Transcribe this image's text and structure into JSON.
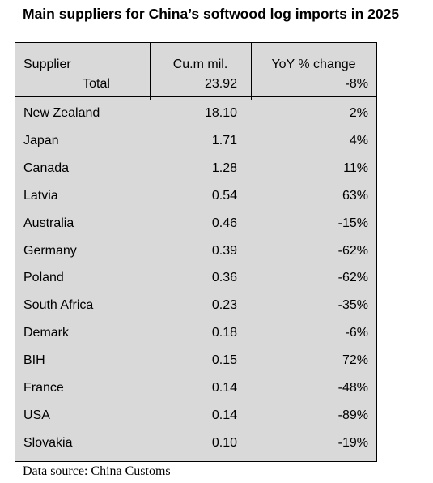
{
  "header": {
    "title": "Main suppliers for China’s softwood log imports in 2025"
  },
  "table": {
    "columns": [
      "Supplier",
      "Cu.m mil.",
      "YoY % change"
    ],
    "total": [
      "Total",
      "23.92",
      "-8%"
    ],
    "rows": [
      [
        "New Zealand",
        "18.10",
        "2%"
      ],
      [
        "Japan",
        "1.71",
        "4%"
      ],
      [
        "Canada",
        "1.28",
        "11%"
      ],
      [
        "Latvia",
        "0.54",
        "63%"
      ],
      [
        "Australia",
        "0.46",
        "-15%"
      ],
      [
        "Germany",
        "0.39",
        "-62%"
      ],
      [
        "Poland",
        "0.36",
        "-62%"
      ],
      [
        "South Africa",
        "0.23",
        "-35%"
      ],
      [
        "Demark",
        "0.18",
        "-6%"
      ],
      [
        "BIH",
        "0.15",
        "72%"
      ],
      [
        "France",
        "0.14",
        "-48%"
      ],
      [
        "USA",
        "0.14",
        "-89%"
      ],
      [
        "Slovakia",
        "0.10",
        "-19%"
      ]
    ]
  },
  "source": "Data source: China Customs"
}
